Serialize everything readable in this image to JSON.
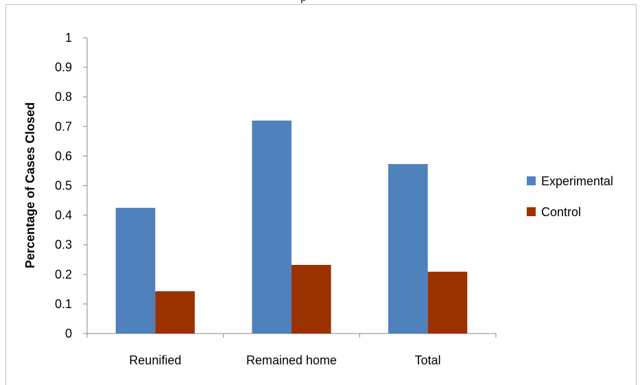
{
  "chart_data": {
    "type": "bar",
    "title": "",
    "xlabel": "",
    "ylabel": "Percentage of Cases Closed",
    "ylim": [
      0,
      1
    ],
    "yticks": [
      "0",
      "0.1",
      "0.2",
      "0.3",
      "0.4",
      "0.5",
      "0.6",
      "0.7",
      "0.8",
      "0.9",
      "1"
    ],
    "categories": [
      "Reunified",
      "Remained home",
      "Total"
    ],
    "series": [
      {
        "name": "Experimental",
        "color": "#4f81bd",
        "values": [
          0.425,
          0.72,
          0.573
        ]
      },
      {
        "name": "Control",
        "color": "#9c3100",
        "values": [
          0.143,
          0.232,
          0.209
        ]
      }
    ],
    "grid": false,
    "legend_position": "right"
  }
}
